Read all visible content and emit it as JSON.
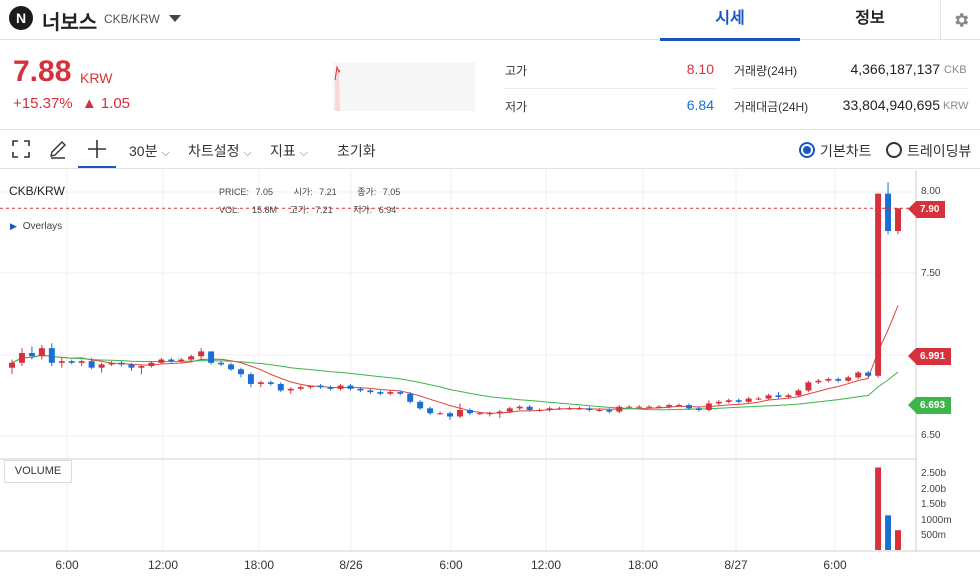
{
  "header": {
    "logo_letter": "N",
    "coin_name": "너보스",
    "pair": "CKB/KRW",
    "tabs": [
      "시세",
      "정보"
    ],
    "active_tab": "시세"
  },
  "summary": {
    "price": "7.88",
    "price_unit": "KRW",
    "change_pct": "+15.37%",
    "change_abs": "▲ 1.05",
    "high_label": "고가",
    "high_value": "8.10",
    "low_label": "저가",
    "low_value": "6.84",
    "volume_label": "거래량(24H)",
    "volume_value": "4,366,187,137",
    "volume_unit": "CKB",
    "turnover_label": "거래대금(24H)",
    "turnover_value": "33,804,940,695",
    "turnover_unit": "KRW"
  },
  "toolbar": {
    "interval": "30분",
    "chart_settings": "차트설정",
    "indicators": "지표",
    "reset": "초기화",
    "basic_chart": "기본차트",
    "trading_view": "트레이딩뷰"
  },
  "chart": {
    "symbol": "CKB/KRW",
    "price_label": "PRICE:",
    "price_val": "7.05",
    "open_label": "시가:",
    "open_val": "7.21",
    "close_label": "종가:",
    "close_val": "7.05",
    "vol_label": "VOL:",
    "vol_val": "15.8M",
    "high_label": "고가:",
    "high_val": "7.21",
    "low_label": "저가:",
    "low_val": "6.94",
    "overlays": "Overlays",
    "volume_button": "VOLUME",
    "last_price_tag": "7.90",
    "ma1_tag": "6.991",
    "ma2_tag": "6.693",
    "y_labels": [
      "8.00",
      "7.50",
      "6.50"
    ],
    "vol_labels": [
      "2.50b",
      "2.00b",
      "1.50b",
      "1000m",
      "500m"
    ],
    "x_labels": [
      "6:00",
      "12:00",
      "18:00",
      "8/26",
      "6:00",
      "12:00",
      "18:00",
      "8/27",
      "6:00"
    ],
    "colors": {
      "up": "#d6313d",
      "down": "#1a6fd6",
      "ma_short": "#e0433b",
      "ma_long": "#3cb54a"
    }
  },
  "chart_data": {
    "type": "candlestick",
    "title": "CKB/KRW",
    "ylim": [
      6.4,
      8.1
    ],
    "candles": [
      [
        6.92,
        6.97,
        6.88,
        6.95
      ],
      [
        6.95,
        7.04,
        6.93,
        7.01
      ],
      [
        7.01,
        7.05,
        6.97,
        6.99
      ],
      [
        6.99,
        7.06,
        6.97,
        7.04
      ],
      [
        7.04,
        7.07,
        6.93,
        6.95
      ],
      [
        6.95,
        6.98,
        6.92,
        6.96
      ],
      [
        6.96,
        6.97,
        6.94,
        6.95
      ],
      [
        6.95,
        6.97,
        6.93,
        6.96
      ],
      [
        6.96,
        6.98,
        6.91,
        6.92
      ],
      [
        6.92,
        6.95,
        6.89,
        6.94
      ],
      [
        6.94,
        6.96,
        6.93,
        6.95
      ],
      [
        6.95,
        6.96,
        6.93,
        6.94
      ],
      [
        6.94,
        6.95,
        6.9,
        6.92
      ],
      [
        6.92,
        6.94,
        6.88,
        6.93
      ],
      [
        6.93,
        6.96,
        6.92,
        6.95
      ],
      [
        6.95,
        6.98,
        6.94,
        6.97
      ],
      [
        6.97,
        6.98,
        6.95,
        6.96
      ],
      [
        6.96,
        6.98,
        6.95,
        6.97
      ],
      [
        6.97,
        7.0,
        6.96,
        6.99
      ],
      [
        6.99,
        7.04,
        6.97,
        7.02
      ],
      [
        7.02,
        7.02,
        6.94,
        6.95
      ],
      [
        6.95,
        6.96,
        6.93,
        6.94
      ],
      [
        6.94,
        6.95,
        6.9,
        6.91
      ],
      [
        6.91,
        6.92,
        6.86,
        6.88
      ],
      [
        6.88,
        6.89,
        6.8,
        6.82
      ],
      [
        6.82,
        6.84,
        6.8,
        6.83
      ],
      [
        6.83,
        6.84,
        6.81,
        6.82
      ],
      [
        6.82,
        6.83,
        6.77,
        6.78
      ],
      [
        6.78,
        6.8,
        6.76,
        6.79
      ],
      [
        6.79,
        6.81,
        6.78,
        6.8
      ],
      [
        6.8,
        6.81,
        6.79,
        6.81
      ],
      [
        6.81,
        6.82,
        6.79,
        6.8
      ],
      [
        6.8,
        6.81,
        6.78,
        6.79
      ],
      [
        6.79,
        6.82,
        6.78,
        6.81
      ],
      [
        6.81,
        6.82,
        6.78,
        6.79
      ],
      [
        6.79,
        6.8,
        6.77,
        6.78
      ],
      [
        6.78,
        6.79,
        6.76,
        6.77
      ],
      [
        6.77,
        6.78,
        6.75,
        6.76
      ],
      [
        6.76,
        6.78,
        6.75,
        6.77
      ],
      [
        6.77,
        6.78,
        6.75,
        6.76
      ],
      [
        6.76,
        6.77,
        6.7,
        6.71
      ],
      [
        6.71,
        6.72,
        6.66,
        6.67
      ],
      [
        6.67,
        6.68,
        6.63,
        6.64
      ],
      [
        6.64,
        6.65,
        6.63,
        6.64
      ],
      [
        6.64,
        6.65,
        6.6,
        6.62
      ],
      [
        6.62,
        6.7,
        6.61,
        6.66
      ],
      [
        6.66,
        6.67,
        6.63,
        6.64
      ],
      [
        6.64,
        6.65,
        6.63,
        6.64
      ],
      [
        6.64,
        6.65,
        6.62,
        6.64
      ],
      [
        6.64,
        6.66,
        6.61,
        6.65
      ],
      [
        6.65,
        6.68,
        6.64,
        6.67
      ],
      [
        6.67,
        6.69,
        6.66,
        6.68
      ],
      [
        6.68,
        6.69,
        6.65,
        6.66
      ],
      [
        6.66,
        6.67,
        6.65,
        6.66
      ],
      [
        6.66,
        6.68,
        6.65,
        6.67
      ],
      [
        6.67,
        6.68,
        6.66,
        6.67
      ],
      [
        6.67,
        6.68,
        6.66,
        6.67
      ],
      [
        6.67,
        6.68,
        6.66,
        6.67
      ],
      [
        6.67,
        6.68,
        6.65,
        6.66
      ],
      [
        6.66,
        6.67,
        6.65,
        6.66
      ],
      [
        6.66,
        6.67,
        6.64,
        6.65
      ],
      [
        6.65,
        6.69,
        6.64,
        6.68
      ],
      [
        6.68,
        6.69,
        6.67,
        6.68
      ],
      [
        6.68,
        6.69,
        6.67,
        6.68
      ],
      [
        6.68,
        6.69,
        6.67,
        6.68
      ],
      [
        6.68,
        6.69,
        6.67,
        6.68
      ],
      [
        6.68,
        6.7,
        6.67,
        6.69
      ],
      [
        6.69,
        6.7,
        6.68,
        6.69
      ],
      [
        6.69,
        6.7,
        6.66,
        6.67
      ],
      [
        6.67,
        6.68,
        6.65,
        6.66
      ],
      [
        6.66,
        6.72,
        6.65,
        6.7
      ],
      [
        6.7,
        6.72,
        6.69,
        6.71
      ],
      [
        6.71,
        6.73,
        6.7,
        6.72
      ],
      [
        6.72,
        6.73,
        6.7,
        6.71
      ],
      [
        6.71,
        6.74,
        6.7,
        6.73
      ],
      [
        6.73,
        6.74,
        6.72,
        6.73
      ],
      [
        6.73,
        6.76,
        6.72,
        6.75
      ],
      [
        6.75,
        6.77,
        6.73,
        6.74
      ],
      [
        6.74,
        6.76,
        6.73,
        6.75
      ],
      [
        6.75,
        6.79,
        6.74,
        6.78
      ],
      [
        6.78,
        6.84,
        6.77,
        6.83
      ],
      [
        6.83,
        6.85,
        6.82,
        6.84
      ],
      [
        6.84,
        6.86,
        6.83,
        6.85
      ],
      [
        6.85,
        6.86,
        6.83,
        6.84
      ],
      [
        6.84,
        6.87,
        6.83,
        6.86
      ],
      [
        6.86,
        6.9,
        6.85,
        6.89
      ],
      [
        6.89,
        6.9,
        6.86,
        6.87
      ],
      [
        6.87,
        7.99,
        6.86,
        7.99
      ],
      [
        7.99,
        8.06,
        7.74,
        7.76
      ],
      [
        7.76,
        7.9,
        7.74,
        7.9
      ]
    ],
    "volume_labels": [
      "2.50b",
      "2.00b",
      "1.50b",
      "1000m",
      "500m"
    ]
  }
}
